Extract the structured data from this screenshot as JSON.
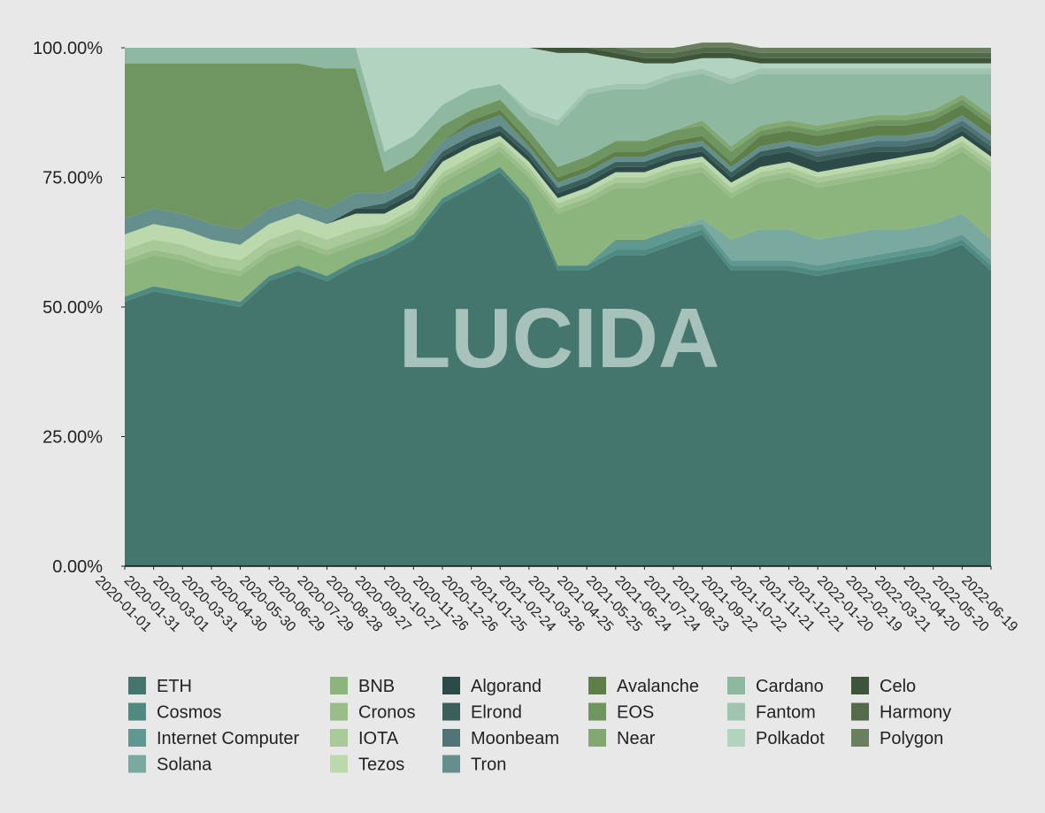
{
  "chart_data": {
    "type": "stacked_area_percent",
    "watermark": "LUCIDA",
    "x": [
      "2020-01-01",
      "2020-01-31",
      "2020-03-01",
      "2020-03-31",
      "2020-04-30",
      "2020-05-30",
      "2020-06-29",
      "2020-07-29",
      "2020-08-28",
      "2020-09-27",
      "2020-10-27",
      "2020-11-26",
      "2020-12-26",
      "2021-01-25",
      "2021-02-24",
      "2021-03-26",
      "2021-04-25",
      "2021-05-25",
      "2021-06-24",
      "2021-07-24",
      "2021-08-23",
      "2021-09-22",
      "2021-10-22",
      "2021-11-21",
      "2021-12-21",
      "2022-01-20",
      "2022-02-19",
      "2022-03-21",
      "2022-04-20",
      "2022-05-20",
      "2022-06-19"
    ],
    "ylim": [
      0,
      100
    ],
    "yticks": [
      {
        "value": 0,
        "label": "0.00%"
      },
      {
        "value": 25,
        "label": "25.00%"
      },
      {
        "value": 50,
        "label": "50.00%"
      },
      {
        "value": 75,
        "label": "75.00%"
      },
      {
        "value": 100,
        "label": "100.00%"
      }
    ],
    "series": [
      {
        "name": "ETH",
        "color": "#45766e",
        "values": [
          51,
          53,
          52,
          51,
          50,
          55,
          57,
          55,
          58,
          60,
          63,
          70,
          73,
          76,
          70,
          57,
          57,
          60,
          60,
          62,
          64,
          57,
          57,
          57,
          56,
          57,
          58,
          59,
          60,
          62,
          57
        ]
      },
      {
        "name": "Cosmos",
        "color": "#4f8a80",
        "values": [
          1,
          1,
          1,
          1,
          1,
          1,
          1,
          1,
          1,
          1,
          1,
          1,
          1,
          1,
          1,
          1,
          1,
          1,
          1,
          1,
          1,
          1,
          1,
          1,
          1,
          1,
          1,
          1,
          1,
          1,
          1
        ]
      },
      {
        "name": "Internet Computer",
        "color": "#5f9890",
        "values": [
          0,
          0,
          0,
          0,
          0,
          0,
          0,
          0,
          0,
          0,
          0,
          0,
          0,
          0,
          0,
          0,
          0,
          2,
          2,
          2,
          1,
          1,
          1,
          1,
          1,
          1,
          1,
          1,
          1,
          1,
          1
        ]
      },
      {
        "name": "Solana",
        "color": "#7aa9a0",
        "values": [
          0,
          0,
          0,
          0,
          0,
          0,
          0,
          0,
          0,
          0,
          0,
          0,
          0,
          0,
          0,
          0,
          0,
          0,
          0,
          0,
          1,
          4,
          6,
          6,
          5,
          5,
          5,
          4,
          4,
          4,
          4
        ]
      },
      {
        "name": "BNB",
        "color": "#8cb57d",
        "values": [
          6,
          6,
          6,
          5,
          5,
          4,
          4,
          4,
          3,
          3,
          3,
          3,
          3,
          3,
          4,
          10,
          12,
          10,
          10,
          10,
          9,
          8,
          9,
          10,
          10,
          10,
          10,
          11,
          11,
          12,
          13
        ]
      },
      {
        "name": "Cronos",
        "color": "#98bd88",
        "values": [
          1,
          1,
          1,
          1,
          1,
          1,
          1,
          1,
          1,
          1,
          1,
          1,
          1,
          1,
          1,
          1,
          1,
          1,
          1,
          1,
          1,
          1,
          1,
          1,
          1,
          1,
          1,
          1,
          1,
          1,
          1
        ]
      },
      {
        "name": "IOTA",
        "color": "#a8ca98",
        "values": [
          2,
          2,
          2,
          2,
          2,
          2,
          2,
          2,
          2,
          1,
          1,
          1,
          1,
          1,
          1,
          1,
          1,
          1,
          1,
          1,
          1,
          1,
          1,
          1,
          1,
          1,
          1,
          1,
          1,
          1,
          1
        ]
      },
      {
        "name": "Tezos",
        "color": "#bcd9ad",
        "values": [
          3,
          3,
          3,
          3,
          3,
          3,
          3,
          3,
          3,
          2,
          2,
          2,
          2,
          1,
          1,
          1,
          1,
          1,
          1,
          1,
          1,
          1,
          1,
          1,
          1,
          1,
          1,
          1,
          1,
          1,
          1
        ]
      },
      {
        "name": "Algorand",
        "color": "#2c4a47",
        "values": [
          0,
          0,
          0,
          0,
          0,
          0,
          0,
          0,
          1,
          1,
          1,
          1,
          1,
          1,
          1,
          1,
          1,
          1,
          1,
          1,
          1,
          1,
          2,
          2,
          2,
          2,
          2,
          1,
          1,
          1,
          1
        ]
      },
      {
        "name": "Elrond",
        "color": "#3b5f5a",
        "values": [
          0,
          0,
          0,
          0,
          0,
          0,
          0,
          0,
          0,
          1,
          1,
          1,
          1,
          1,
          1,
          1,
          1,
          1,
          1,
          1,
          1,
          1,
          1,
          1,
          1,
          1,
          1,
          1,
          1,
          1,
          1
        ]
      },
      {
        "name": "Moonbeam",
        "color": "#4f7376",
        "values": [
          0,
          0,
          0,
          0,
          0,
          0,
          0,
          0,
          0,
          0,
          0,
          0,
          0,
          0,
          0,
          0,
          0,
          0,
          0,
          0,
          0,
          0,
          0,
          0,
          1,
          1,
          1,
          1,
          1,
          1,
          1
        ]
      },
      {
        "name": "Tron",
        "color": "#648f8c",
        "values": [
          3,
          3,
          3,
          3,
          3,
          3,
          3,
          3,
          3,
          2,
          2,
          2,
          2,
          2,
          1,
          1,
          1,
          1,
          1,
          1,
          1,
          1,
          1,
          1,
          1,
          1,
          1,
          1,
          1,
          1,
          1
        ]
      },
      {
        "name": "Avalanche",
        "color": "#5e7f4a",
        "values": [
          0,
          0,
          0,
          0,
          0,
          0,
          0,
          0,
          0,
          0,
          0,
          0,
          1,
          1,
          1,
          1,
          1,
          1,
          1,
          1,
          1,
          1,
          2,
          2,
          2,
          2,
          2,
          2,
          2,
          2,
          2
        ]
      },
      {
        "name": "EOS",
        "color": "#6f9560",
        "values": [
          30,
          28,
          29,
          31,
          32,
          28,
          26,
          27,
          24,
          4,
          4,
          3,
          2,
          2,
          2,
          2,
          2,
          2,
          2,
          2,
          2,
          2,
          1,
          1,
          1,
          1,
          1,
          1,
          1,
          1,
          1
        ]
      },
      {
        "name": "Near",
        "color": "#82a872",
        "values": [
          0,
          0,
          0,
          0,
          0,
          0,
          0,
          0,
          0,
          0,
          0,
          0,
          0,
          0,
          0,
          0,
          0,
          0,
          0,
          0,
          1,
          1,
          1,
          1,
          1,
          1,
          1,
          1,
          1,
          1,
          1
        ]
      },
      {
        "name": "Cardano",
        "color": "#8fb8a0",
        "values": [
          3,
          3,
          3,
          3,
          3,
          3,
          3,
          4,
          4,
          4,
          4,
          4,
          4,
          3,
          3,
          8,
          12,
          10,
          10,
          10,
          9,
          12,
          10,
          9,
          10,
          9,
          8,
          8,
          7,
          4,
          8
        ]
      },
      {
        "name": "Fantom",
        "color": "#a0c4b0",
        "values": [
          0,
          0,
          0,
          0,
          0,
          0,
          0,
          0,
          0,
          0,
          0,
          0,
          0,
          0,
          1,
          1,
          1,
          1,
          1,
          1,
          1,
          1,
          1,
          1,
          1,
          1,
          1,
          1,
          1,
          1,
          1
        ]
      },
      {
        "name": "Polkadot",
        "color": "#b2d3c0",
        "values": [
          0,
          0,
          0,
          0,
          0,
          0,
          0,
          0,
          0,
          20,
          17,
          11,
          8,
          7,
          12,
          13,
          7,
          5,
          4,
          2,
          2,
          4,
          1,
          1,
          1,
          1,
          1,
          1,
          1,
          1,
          1
        ]
      },
      {
        "name": "Celo",
        "color": "#3e5539",
        "values": [
          0,
          0,
          0,
          0,
          0,
          0,
          0,
          0,
          0,
          0,
          0,
          0,
          0,
          0,
          0,
          1,
          1,
          1,
          1,
          1,
          1,
          1,
          1,
          1,
          1,
          1,
          1,
          1,
          1,
          1,
          1
        ]
      },
      {
        "name": "Harmony",
        "color": "#536b4b",
        "values": [
          0,
          0,
          0,
          0,
          0,
          0,
          0,
          0,
          0,
          0,
          0,
          0,
          0,
          0,
          0,
          0,
          0,
          1,
          1,
          1,
          1,
          1,
          1,
          1,
          1,
          1,
          1,
          1,
          1,
          1,
          1
        ]
      },
      {
        "name": "Polygon",
        "color": "#6a7f5f",
        "values": [
          0,
          0,
          0,
          0,
          0,
          0,
          0,
          0,
          0,
          0,
          0,
          0,
          0,
          0,
          0,
          0,
          0,
          0,
          1,
          1,
          1,
          1,
          1,
          1,
          1,
          1,
          1,
          1,
          1,
          1,
          1
        ]
      }
    ]
  }
}
